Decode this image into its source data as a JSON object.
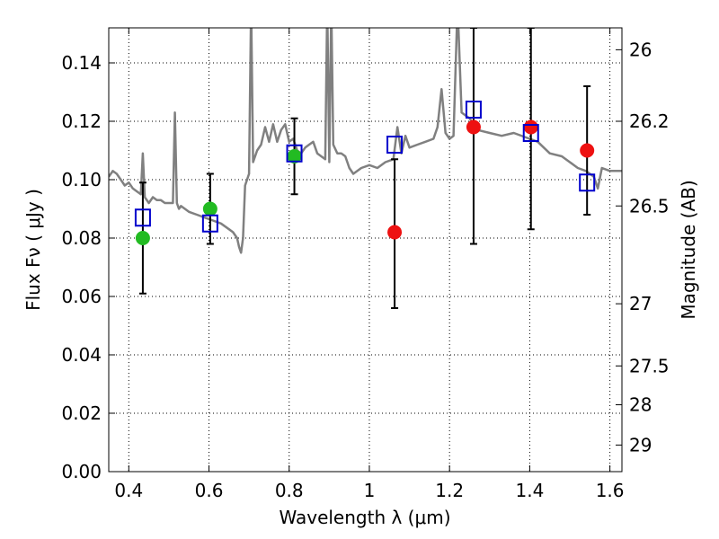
{
  "chart_data": {
    "type": "scatter",
    "title": "",
    "xlabel": "Wavelength  λ (μm)",
    "ylabel": "Flux  Fν  ( μJy )",
    "y2label": "Magnitude (AB)",
    "xlim": [
      0.35,
      1.63
    ],
    "ylim": [
      0.0,
      0.152
    ],
    "xticks": [
      0.4,
      0.6,
      0.8,
      1.0,
      1.2,
      1.4,
      1.6
    ],
    "xtick_labels": [
      "0.4",
      "0.6",
      "0.8",
      "1",
      "1.2",
      "1.4",
      "1.6"
    ],
    "yticks": [
      0.0,
      0.02,
      0.04,
      0.06,
      0.08,
      0.1,
      0.12,
      0.14
    ],
    "ytick_labels": [
      "0.00",
      "0.02",
      "0.04",
      "0.06",
      "0.08",
      "0.10",
      "0.12",
      "0.14"
    ],
    "y2ticks": [
      {
        "label": "26",
        "flux": 0.1445
      },
      {
        "label": "26.2",
        "flux": 0.12
      },
      {
        "label": "26.5",
        "flux": 0.091
      },
      {
        "label": "27",
        "flux": 0.0575
      },
      {
        "label": "27.5",
        "flux": 0.0362
      },
      {
        "label": "28",
        "flux": 0.0229
      },
      {
        "label": "29",
        "flux": 0.0091
      }
    ],
    "grid": true,
    "series": [
      {
        "kind": "model-spectrum",
        "color": "#808080",
        "x": [
          0.35,
          0.36,
          0.37,
          0.38,
          0.39,
          0.4,
          0.41,
          0.42,
          0.43,
          0.435,
          0.44,
          0.45,
          0.46,
          0.47,
          0.48,
          0.49,
          0.5,
          0.51,
          0.515,
          0.52,
          0.525,
          0.53,
          0.55,
          0.57,
          0.59,
          0.61,
          0.63,
          0.65,
          0.66,
          0.67,
          0.675,
          0.68,
          0.685,
          0.69,
          0.7,
          0.705,
          0.71,
          0.72,
          0.73,
          0.74,
          0.75,
          0.76,
          0.77,
          0.78,
          0.79,
          0.8,
          0.81,
          0.82,
          0.83,
          0.84,
          0.85,
          0.86,
          0.87,
          0.88,
          0.89,
          0.895,
          0.9,
          0.905,
          0.91,
          0.92,
          0.93,
          0.94,
          0.95,
          0.96,
          0.98,
          1.0,
          1.02,
          1.04,
          1.06,
          1.07,
          1.08,
          1.09,
          1.1,
          1.12,
          1.14,
          1.16,
          1.17,
          1.18,
          1.19,
          1.2,
          1.21,
          1.22,
          1.23,
          1.25,
          1.27,
          1.3,
          1.33,
          1.36,
          1.4,
          1.42,
          1.45,
          1.48,
          1.5,
          1.52,
          1.54,
          1.56,
          1.57,
          1.58,
          1.6,
          1.63
        ],
        "y": [
          0.101,
          0.103,
          0.102,
          0.1,
          0.098,
          0.099,
          0.097,
          0.096,
          0.095,
          0.109,
          0.094,
          0.092,
          0.094,
          0.093,
          0.093,
          0.092,
          0.092,
          0.092,
          0.123,
          0.092,
          0.09,
          0.091,
          0.089,
          0.088,
          0.087,
          0.086,
          0.085,
          0.083,
          0.082,
          0.08,
          0.077,
          0.075,
          0.08,
          0.098,
          0.102,
          0.16,
          0.106,
          0.11,
          0.112,
          0.118,
          0.113,
          0.119,
          0.113,
          0.117,
          0.119,
          0.113,
          0.114,
          0.11,
          0.109,
          0.111,
          0.112,
          0.113,
          0.109,
          0.108,
          0.107,
          0.16,
          0.106,
          0.16,
          0.112,
          0.109,
          0.109,
          0.108,
          0.104,
          0.102,
          0.104,
          0.105,
          0.104,
          0.106,
          0.107,
          0.118,
          0.109,
          0.115,
          0.111,
          0.112,
          0.113,
          0.114,
          0.118,
          0.131,
          0.116,
          0.114,
          0.115,
          0.16,
          0.123,
          0.121,
          0.117,
          0.116,
          0.115,
          0.116,
          0.114,
          0.113,
          0.109,
          0.108,
          0.106,
          0.104,
          0.103,
          0.101,
          0.097,
          0.104,
          0.103,
          0.103
        ]
      },
      {
        "kind": "model-photometry",
        "color": "#0000cc",
        "marker": "open-square",
        "x": [
          0.435,
          0.603,
          0.813,
          1.063,
          1.26,
          1.403,
          1.543
        ],
        "y": [
          0.087,
          0.085,
          0.109,
          0.112,
          0.124,
          0.116,
          0.099
        ]
      },
      {
        "kind": "observed",
        "color": "#22bb22",
        "marker": "circle",
        "x": [
          0.435,
          0.603,
          0.813
        ],
        "y": [
          0.08,
          0.09,
          0.108
        ],
        "yerr_low": [
          0.061,
          0.078,
          0.095
        ],
        "yerr_high": [
          0.099,
          0.102,
          0.121
        ]
      },
      {
        "kind": "observed",
        "color": "#ee1111",
        "marker": "circle",
        "x": [
          1.063,
          1.26,
          1.403,
          1.543
        ],
        "y": [
          0.082,
          0.118,
          0.118,
          0.11
        ],
        "yerr_low": [
          0.056,
          0.078,
          0.083,
          0.088
        ],
        "yerr_high": [
          0.107,
          0.152,
          0.152,
          0.132
        ]
      }
    ]
  }
}
